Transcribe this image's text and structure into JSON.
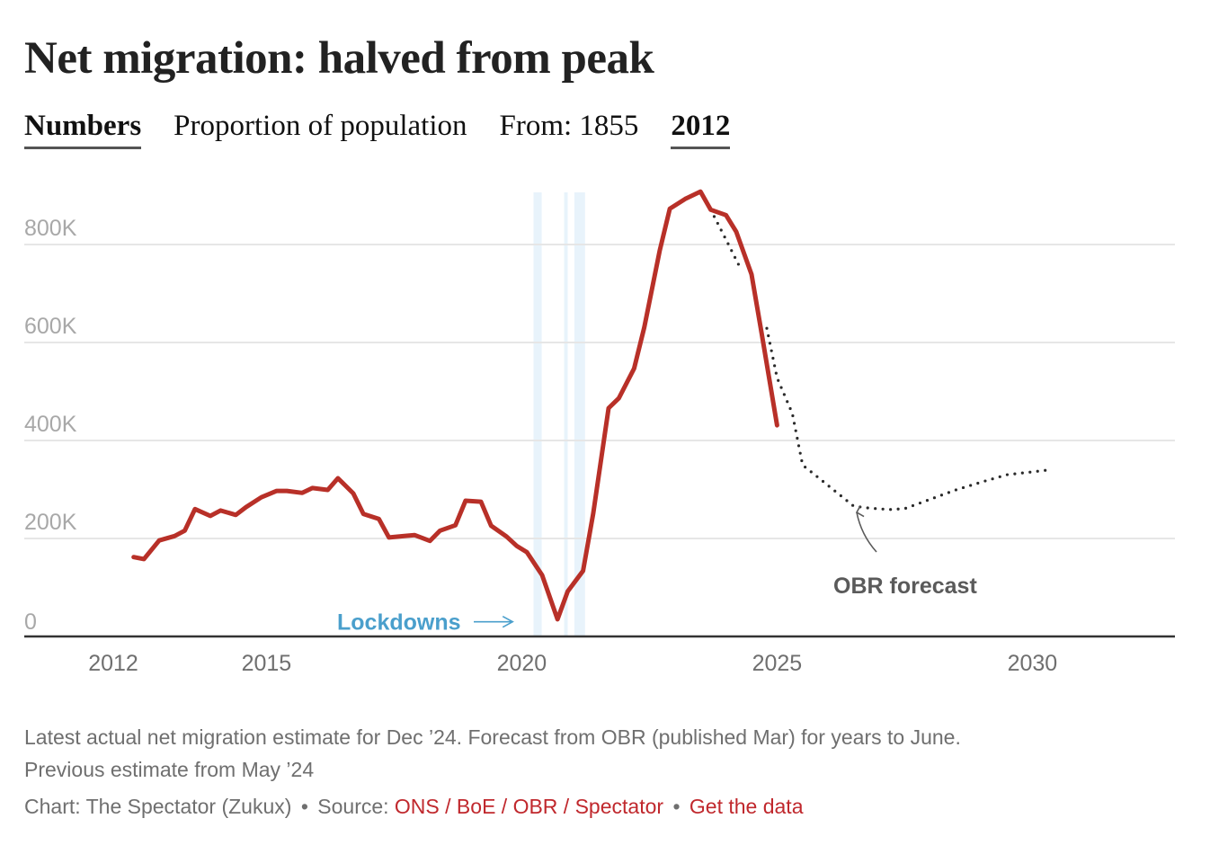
{
  "header": {
    "title": "Net migration: halved from peak",
    "toggles": [
      {
        "label": "Numbers",
        "active": true
      },
      {
        "label": "Proportion of population",
        "active": false
      },
      {
        "label": "From: 1855",
        "active": false,
        "static": true
      },
      {
        "label": "2012",
        "active": true
      }
    ]
  },
  "colors": {
    "actual": "#b83028",
    "forecast": "#2a2a2a",
    "lockdown_band": "#e8f3fb",
    "lockdown_label": "#4a9fcc",
    "annotation": "#5a5a5a",
    "gridline": "#e6e6e6",
    "axis": "#333333",
    "tick_label": "#a8a8a8",
    "link": "#c0282d"
  },
  "chart_data": {
    "type": "line",
    "title": "Net migration: halved from peak",
    "xlabel": "",
    "ylabel": "",
    "xlim": [
      2011.7,
      2032.8
    ],
    "ylim": [
      0,
      900000
    ],
    "grid": true,
    "x_ticks": [
      2012,
      2015,
      2020,
      2025,
      2030
    ],
    "x_tick_labels": [
      "2012",
      "2015",
      "2020",
      "2025",
      "2030"
    ],
    "y_ticks": [
      0,
      200000,
      400000,
      600000,
      800000
    ],
    "y_tick_labels": [
      "0",
      "200K",
      "400K",
      "600K",
      "800K"
    ],
    "series": [
      {
        "name": "Net migration (actual)",
        "style": "solid",
        "x": [
          2012.4,
          2012.6,
          2012.9,
          2013.2,
          2013.4,
          2013.6,
          2013.9,
          2014.1,
          2014.4,
          2014.6,
          2014.9,
          2015.2,
          2015.4,
          2015.7,
          2015.9,
          2016.2,
          2016.4,
          2016.7,
          2016.9,
          2017.2,
          2017.4,
          2017.7,
          2017.9,
          2018.2,
          2018.4,
          2018.7,
          2018.9,
          2019.2,
          2019.4,
          2019.7,
          2019.9,
          2020.1,
          2020.4,
          2020.7,
          2020.9,
          2021.2,
          2021.4,
          2021.7,
          2021.9,
          2022.2,
          2022.4,
          2022.7,
          2022.9,
          2023.2,
          2023.5,
          2023.7,
          2024.0,
          2024.2,
          2024.5,
          2024.7,
          2025.0
        ],
        "values": [
          162000,
          158000,
          196000,
          205000,
          216000,
          260000,
          246000,
          257000,
          248000,
          264000,
          284000,
          297000,
          297000,
          293000,
          303000,
          299000,
          323000,
          292000,
          250000,
          240000,
          202000,
          205000,
          207000,
          195000,
          216000,
          227000,
          277000,
          275000,
          226000,
          204000,
          185000,
          172000,
          125000,
          35000,
          92000,
          134000,
          251000,
          466000,
          486000,
          547000,
          631000,
          787000,
          873000,
          893000,
          908000,
          871000,
          860000,
          826000,
          739000,
          617000,
          431000
        ]
      },
      {
        "name": "Previous estimate (May '24)",
        "style": "dotted",
        "x": [
          2023.7,
          2024.0,
          2024.3
        ],
        "values": [
          871000,
          810000,
          748000
        ]
      },
      {
        "name": "OBR forecast",
        "style": "dotted",
        "x": [
          2024.8,
          2025.0,
          2025.3,
          2025.5,
          2025.8,
          2026.0,
          2026.3,
          2026.5,
          2026.8,
          2027.2,
          2027.5,
          2028.0,
          2028.5,
          2029.0,
          2029.5,
          2030.0,
          2030.4
        ],
        "values": [
          629000,
          528000,
          455000,
          350000,
          325000,
          308000,
          283000,
          266000,
          262000,
          259000,
          261000,
          280000,
          299000,
          315000,
          330000,
          336000,
          341000
        ]
      }
    ],
    "bands": [
      {
        "name": "Lockdown 1",
        "x_start": 2020.23,
        "x_end": 2020.39
      },
      {
        "name": "Lockdown 2",
        "x_start": 2020.83,
        "x_end": 2020.9
      },
      {
        "name": "Lockdown 3",
        "x_start": 2021.03,
        "x_end": 2021.24
      }
    ],
    "annotations": [
      {
        "text": "Lockdowns",
        "x": 2016.9,
        "y": 30000,
        "arrow_to_x": 2020.05,
        "arrow_to_y": 30000
      },
      {
        "text": "OBR forecast",
        "x": 2026.3,
        "y": 105000,
        "arrow_to_x": 2026.4,
        "arrow_to_y": 245000
      }
    ]
  },
  "footer": {
    "note_line1": "Latest actual net migration estimate for Dec ’24. Forecast from OBR (published Mar) for years to June.",
    "note_line2": "Previous estimate from May ’24",
    "credit_prefix": "Chart: The Spectator (Zukux)",
    "separator": "•",
    "source_label": "Source:",
    "source_link": "ONS / BoE / OBR / Spectator",
    "data_link": "Get the data"
  }
}
